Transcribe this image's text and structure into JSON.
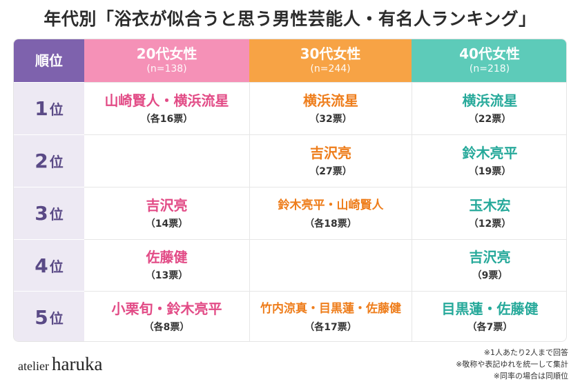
{
  "title": "年代別「浴衣が似合うと思う男性芸能人・有名人ランキング」",
  "header": {
    "rank_label": "順位",
    "columns": [
      {
        "label": "20代女性",
        "n": "(n=138)",
        "color": "#f591b7"
      },
      {
        "label": "30代女性",
        "n": "(n=244)",
        "color": "#f7a345"
      },
      {
        "label": "40代女性",
        "n": "(n=218)",
        "color": "#5dcbb9"
      }
    ]
  },
  "rank_unit": "位",
  "rows": [
    {
      "rank": "1",
      "cells": [
        {
          "name": "山崎賢人・横浜流星",
          "votes": "（各16票）"
        },
        {
          "name": "横浜流星",
          "votes": "（32票）"
        },
        {
          "name": "横浜流星",
          "votes": "（22票）"
        }
      ]
    },
    {
      "rank": "2",
      "cells": [
        {
          "name": "",
          "votes": ""
        },
        {
          "name": "吉沢亮",
          "votes": "（27票）"
        },
        {
          "name": "鈴木亮平",
          "votes": "（19票）"
        }
      ]
    },
    {
      "rank": "3",
      "cells": [
        {
          "name": "吉沢亮",
          "votes": "（14票）"
        },
        {
          "name": "鈴木亮平・山崎賢人",
          "votes": "（各18票）"
        },
        {
          "name": "玉木宏",
          "votes": "（12票）"
        }
      ]
    },
    {
      "rank": "4",
      "cells": [
        {
          "name": "佐藤健",
          "votes": "（13票）"
        },
        {
          "name": "",
          "votes": ""
        },
        {
          "name": "吉沢亮",
          "votes": "（9票）"
        }
      ]
    },
    {
      "rank": "5",
      "cells": [
        {
          "name": "小栗旬・鈴木亮平",
          "votes": "（各8票）"
        },
        {
          "name": "竹内涼真・目黒蓮・佐藤健",
          "votes": "（各17票）"
        },
        {
          "name": "目黒蓮・佐藤健",
          "votes": "（各7票）"
        }
      ]
    }
  ],
  "brand": {
    "prefix": "atelier",
    "name": "haruka"
  },
  "notes": [
    "※1人あたり2人まで回答",
    "※敬称や表記ゆれを統一して集計",
    "※同率の場合は同順位"
  ]
}
